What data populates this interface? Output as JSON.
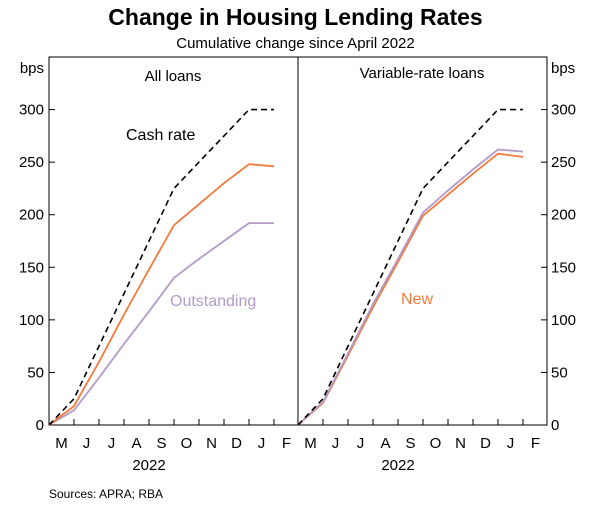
{
  "title": "Change in Housing Lending Rates",
  "subtitle": "Cumulative change since April 2022",
  "source": "Sources: APRA; RBA",
  "chart_data": [
    {
      "type": "line",
      "panel_label": "All loans",
      "ylabel": "bps",
      "ylim": [
        0,
        350
      ],
      "yticks": [
        0,
        50,
        100,
        150,
        200,
        250,
        300
      ],
      "grid": false,
      "x_tick_labels": [
        "M",
        "J",
        "J",
        "A",
        "S",
        "O",
        "N",
        "D",
        "J",
        "F"
      ],
      "x_year_label": "2022",
      "x": [
        "Apr 2022",
        "May 2022",
        "Jun 2022",
        "Jul 2022",
        "Aug 2022",
        "Sep 2022",
        "Oct 2022",
        "Nov 2022",
        "Dec 2022",
        "Jan 2023"
      ],
      "series": [
        {
          "name": "Cash rate",
          "color": "#000000",
          "dash": true,
          "values": [
            0,
            25,
            75,
            125,
            175,
            225,
            250,
            275,
            300,
            300
          ]
        },
        {
          "name": "",
          "color": "#f47a3c",
          "dash": false,
          "values": [
            0,
            18,
            60,
            105,
            148,
            190,
            210,
            230,
            248,
            246
          ]
        },
        {
          "name": "Outstanding",
          "color": "#b39ac9",
          "dash": false,
          "values": [
            0,
            14,
            45,
            77,
            108,
            140,
            158,
            175,
            192,
            192
          ]
        }
      ]
    },
    {
      "type": "line",
      "panel_label": "Variable-rate loans",
      "ylabel": "bps",
      "ylim": [
        0,
        350
      ],
      "yticks": [
        0,
        50,
        100,
        150,
        200,
        250,
        300
      ],
      "grid": false,
      "x_tick_labels": [
        "M",
        "J",
        "J",
        "A",
        "S",
        "O",
        "N",
        "D",
        "J",
        "F"
      ],
      "x_year_label": "2022",
      "x": [
        "Apr 2022",
        "May 2022",
        "Jun 2022",
        "Jul 2022",
        "Aug 2022",
        "Sep 2022",
        "Oct 2022",
        "Nov 2022",
        "Dec 2022",
        "Jan 2023"
      ],
      "series": [
        {
          "name": "",
          "color": "#000000",
          "dash": true,
          "values": [
            0,
            25,
            75,
            125,
            175,
            225,
            250,
            275,
            300,
            300
          ]
        },
        {
          "name": "",
          "color": "#b39ac9",
          "dash": false,
          "values": [
            0,
            22,
            68,
            115,
            158,
            202,
            223,
            243,
            262,
            260
          ]
        },
        {
          "name": "New",
          "color": "#f47a3c",
          "dash": false,
          "values": [
            0,
            21,
            66,
            112,
            155,
            199,
            219,
            239,
            258,
            255
          ]
        }
      ]
    }
  ]
}
